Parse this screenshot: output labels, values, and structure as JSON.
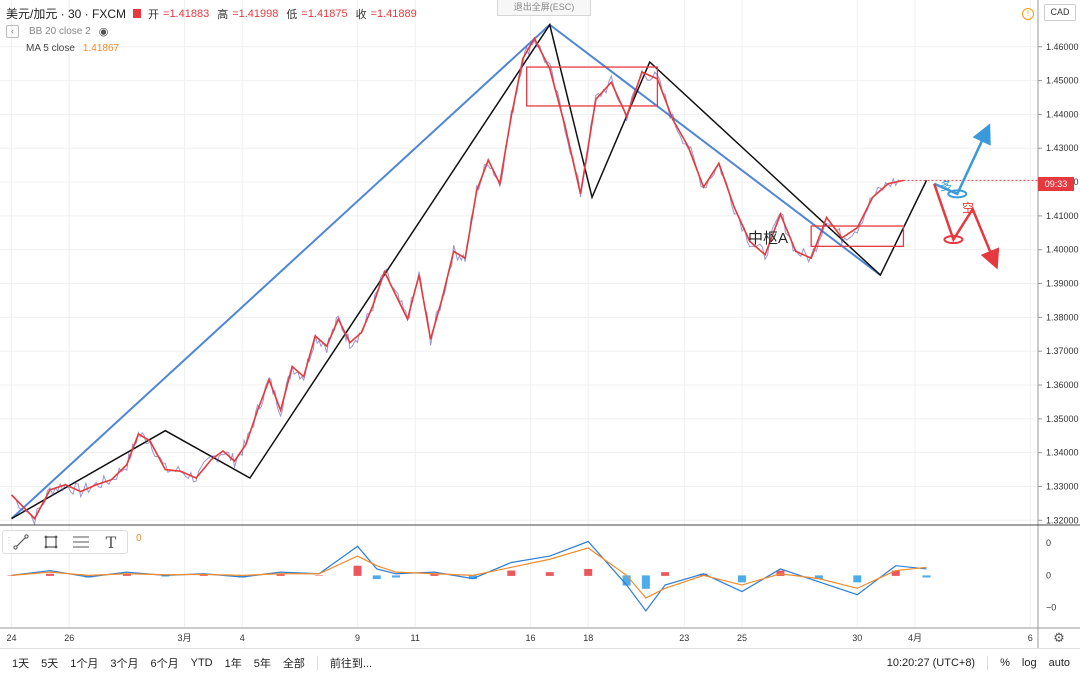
{
  "legend": {
    "symbol": "美元/加元 · 30 · FXCM",
    "ohlc": [
      {
        "k": "开",
        "v": "=1.41883"
      },
      {
        "k": "高",
        "v": "=1.41998"
      },
      {
        "k": "低",
        "v": "=1.41875"
      },
      {
        "k": "收",
        "v": "=1.41889"
      }
    ],
    "bb_label": "BB 20 close 2",
    "ma_label": "MA 5 close",
    "ma_value": "1.41867"
  },
  "exit_fullscreen": "退出全屏(ESC)",
  "currency_badge": "CAD",
  "last_price_tag": "09:33",
  "annotations": {
    "center_a": "中枢A",
    "long": "多",
    "short": "空"
  },
  "macd_visible_value": "0",
  "chart_data": {
    "type": "line",
    "title": "",
    "series": [
      {
        "name": "",
        "color": "#e6393f",
        "x": [
          0,
          6,
          10,
          14,
          18,
          22,
          26,
          30,
          33,
          36,
          40,
          44,
          48,
          52,
          55,
          58,
          61,
          64,
          67,
          70,
          73,
          76,
          79,
          82,
          85,
          88,
          91,
          94,
          97,
          100,
          103,
          106,
          109,
          112,
          115,
          118,
          121,
          124,
          127,
          130,
          133,
          136,
          140,
          144,
          148,
          152,
          156,
          160,
          164,
          168,
          172,
          176,
          180,
          184,
          188,
          192,
          196,
          200,
          204,
          208,
          212,
          216,
          220,
          224,
          228,
          232
        ],
        "y": [
          1.3275,
          1.3205,
          1.329,
          1.3305,
          1.3285,
          1.3305,
          1.332,
          1.3365,
          1.3455,
          1.3435,
          1.335,
          1.3345,
          1.3325,
          1.338,
          1.3405,
          1.3375,
          1.3425,
          1.3525,
          1.3615,
          1.3525,
          1.3655,
          1.3625,
          1.3745,
          1.3715,
          1.3795,
          1.3725,
          1.3755,
          1.3835,
          1.3935,
          1.3865,
          1.3795,
          1.3925,
          1.3735,
          1.3855,
          1.3995,
          1.3975,
          1.4175,
          1.4265,
          1.4195,
          1.4395,
          1.4565,
          1.4625,
          1.4535,
          1.4365,
          1.4165,
          1.4445,
          1.4495,
          1.4395,
          1.4525,
          1.4505,
          1.4385,
          1.4305,
          1.4185,
          1.4255,
          1.4125,
          1.4025,
          1.3985,
          1.4105,
          1.3995,
          1.3975,
          1.4095,
          1.4035,
          1.4065,
          1.4155,
          1.4195,
          1.4205
        ]
      }
    ],
    "strokes": [
      {
        "name": "",
        "color": "#4f86d6",
        "points": [
          [
            0,
            1.3205
          ],
          [
            140,
            1.4665
          ],
          [
            226,
            1.3925
          ]
        ]
      },
      {
        "name": "",
        "color": "#111111",
        "points": [
          [
            0,
            1.3205
          ],
          [
            40,
            1.3465
          ],
          [
            62,
            1.3325
          ],
          [
            140,
            1.4665
          ],
          [
            151,
            1.4155
          ],
          [
            166,
            1.4555
          ],
          [
            226,
            1.3925
          ],
          [
            238,
            1.4205
          ]
        ]
      }
    ],
    "boxes": [
      {
        "label": "",
        "color": "#e6393f",
        "x0": 134,
        "x1": 168,
        "y0": 1.4425,
        "y1": 1.454
      },
      {
        "label": "中枢A",
        "color": "#e6393f",
        "x0": 208,
        "x1": 232,
        "y0": 1.401,
        "y1": 1.407
      }
    ],
    "forecast": [
      {
        "name": "多",
        "color": "#3a9ad9",
        "points": [
          [
            240,
            1.4195
          ],
          [
            246,
            1.4165
          ],
          [
            254,
            1.436
          ]
        ]
      },
      {
        "name": "空",
        "color": "#e6393f",
        "points": [
          [
            240,
            1.4195
          ],
          [
            245,
            1.403
          ],
          [
            250,
            1.412
          ],
          [
            256,
            1.3955
          ]
        ]
      }
    ],
    "x_ticks": [
      {
        "x": 0,
        "label": "24"
      },
      {
        "x": 15,
        "label": "26"
      },
      {
        "x": 45,
        "label": "3月"
      },
      {
        "x": 60,
        "label": "4"
      },
      {
        "x": 90,
        "label": "9"
      },
      {
        "x": 105,
        "label": "11"
      },
      {
        "x": 135,
        "label": "16"
      },
      {
        "x": 150,
        "label": "18"
      },
      {
        "x": 175,
        "label": "23"
      },
      {
        "x": 190,
        "label": "25"
      },
      {
        "x": 220,
        "label": "30"
      },
      {
        "x": 235,
        "label": "4月"
      },
      {
        "x": 265,
        "label": "6"
      }
    ],
    "xlim": [
      -3,
      267
    ],
    "ylim": [
      1.3195,
      1.4685
    ],
    "y_ticks": [
      1.46,
      1.45,
      1.44,
      1.43,
      1.42,
      1.41,
      1.4,
      1.39,
      1.38,
      1.37,
      1.36,
      1.35,
      1.34,
      1.33,
      1.32
    ],
    "y_tick_labels": [
      "1.46000",
      "1.45000",
      "1.44000",
      "1.43000",
      "1.42000",
      "1.41000",
      "1.40000",
      "1.39000",
      "1.38000",
      "1.37000",
      "1.36000",
      "1.35000",
      "1.34000",
      "1.33000",
      "1.32000"
    ],
    "macd": {
      "y_ticks": [
        {
          "v": 1,
          "label": "0"
        },
        {
          "v": 0,
          "label": "0"
        },
        {
          "v": -1,
          "label": "−0"
        }
      ],
      "ylim": [
        -1.6,
        1.5
      ],
      "x": [
        0,
        10,
        20,
        30,
        40,
        50,
        60,
        70,
        80,
        90,
        95,
        100,
        110,
        120,
        130,
        140,
        150,
        160,
        165,
        170,
        180,
        190,
        200,
        210,
        220,
        230,
        238
      ],
      "macd_line": [
        0,
        0.15,
        -0.05,
        0.1,
        0,
        0.05,
        -0.05,
        0.1,
        0.05,
        0.9,
        0.2,
        0.05,
        0.1,
        -0.1,
        0.4,
        0.6,
        1.05,
        -0.3,
        -1.1,
        -0.3,
        0.05,
        -0.5,
        0.2,
        -0.2,
        -0.6,
        0.3,
        0.2
      ],
      "signal_line": [
        0,
        0.1,
        0,
        0.05,
        0.02,
        0.03,
        0,
        0.05,
        0.05,
        0.6,
        0.3,
        0.1,
        0.05,
        0,
        0.25,
        0.5,
        0.85,
        0,
        -0.7,
        -0.4,
        0,
        -0.3,
        0.05,
        -0.1,
        -0.4,
        0.15,
        0.25
      ],
      "histogram": [
        0,
        0.05,
        -0.05,
        0.05,
        -0.02,
        0.02,
        -0.05,
        0.05,
        0,
        0.3,
        -0.1,
        -0.05,
        0.05,
        -0.1,
        0.15,
        0.1,
        0.2,
        -0.3,
        -0.4,
        0.1,
        0.05,
        -0.2,
        0.15,
        -0.1,
        -0.2,
        0.15,
        -0.05
      ]
    }
  },
  "bottom_bar": {
    "ranges": [
      "1天",
      "5天",
      "1个月",
      "3个月",
      "6个月",
      "YTD",
      "1年",
      "5年",
      "全部"
    ],
    "goto": "前往到...",
    "time": "10:20:27 (UTC+8)",
    "percent": "%",
    "log": "log",
    "auto": "auto"
  }
}
